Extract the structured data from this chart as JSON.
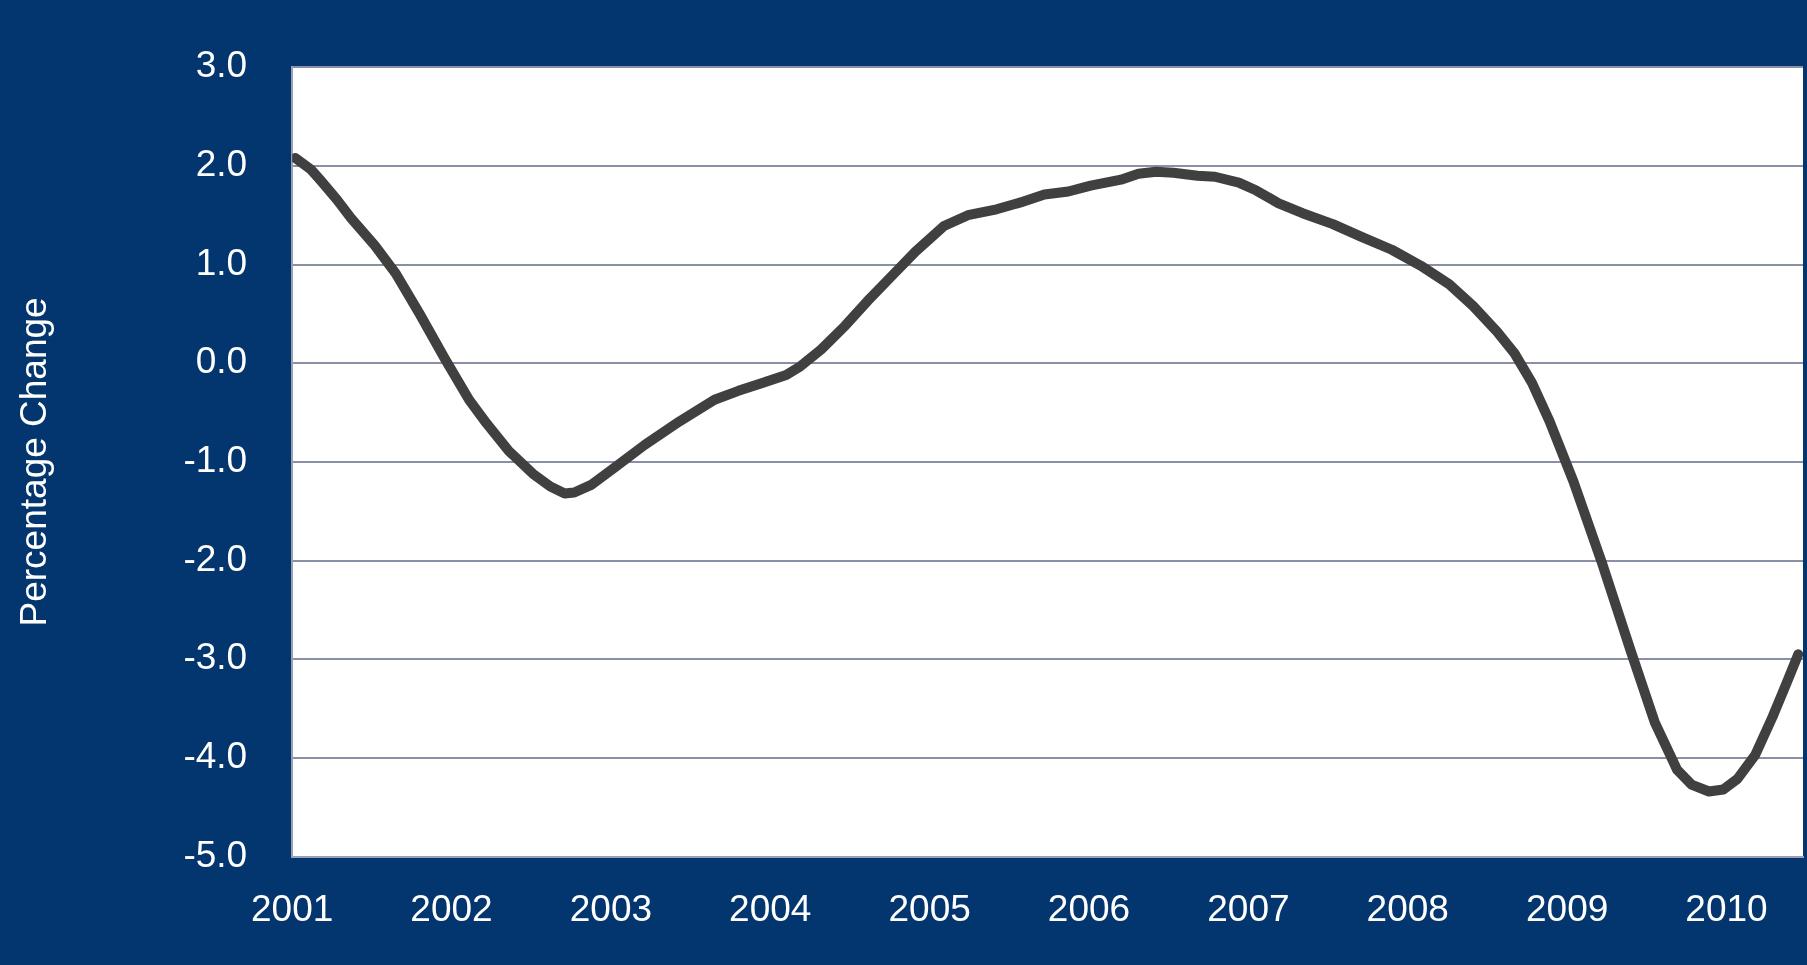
{
  "chart_data": {
    "type": "line",
    "ylabel": "Percentage Change",
    "x": [
      2001.02,
      2001.12,
      2001.18,
      2001.28,
      2001.37,
      2001.52,
      2001.65,
      2001.8,
      2001.96,
      2002.11,
      2002.22,
      2002.36,
      2002.51,
      2002.62,
      2002.71,
      2002.77,
      2002.88,
      2003.03,
      2003.21,
      2003.43,
      2003.65,
      2003.8,
      2003.95,
      2004.1,
      2004.19,
      2004.32,
      2004.47,
      2004.61,
      2004.76,
      2004.91,
      2005.09,
      2005.24,
      2005.42,
      2005.57,
      2005.72,
      2005.87,
      2006.01,
      2006.2,
      2006.31,
      2006.42,
      2006.53,
      2006.68,
      2006.79,
      2006.94,
      2007.05,
      2007.19,
      2007.34,
      2007.53,
      2007.71,
      2007.9,
      2008.08,
      2008.26,
      2008.41,
      2008.56,
      2008.67,
      2008.78,
      2008.89,
      2009.04,
      2009.22,
      2009.4,
      2009.55,
      2009.69,
      2009.78,
      2009.89,
      2009.98,
      2010.07,
      2010.18,
      2010.29,
      2010.38,
      2010.45
    ],
    "series": [
      {
        "color": "#404040",
        "values": [
          2.08,
          1.96,
          1.85,
          1.66,
          1.47,
          1.19,
          0.91,
          0.5,
          0.04,
          -0.37,
          -0.61,
          -0.89,
          -1.12,
          -1.25,
          -1.32,
          -1.31,
          -1.23,
          -1.05,
          -0.83,
          -0.59,
          -0.37,
          -0.28,
          -0.2,
          -0.12,
          -0.03,
          0.14,
          0.38,
          0.63,
          0.88,
          1.13,
          1.39,
          1.5,
          1.56,
          1.63,
          1.71,
          1.74,
          1.8,
          1.86,
          1.92,
          1.94,
          1.93,
          1.9,
          1.89,
          1.83,
          1.75,
          1.62,
          1.52,
          1.41,
          1.28,
          1.15,
          0.99,
          0.8,
          0.58,
          0.32,
          0.1,
          -0.2,
          -0.59,
          -1.2,
          -2.03,
          -2.92,
          -3.64,
          -4.12,
          -4.27,
          -4.34,
          -4.32,
          -4.21,
          -3.97,
          -3.58,
          -3.23,
          -2.95
        ]
      }
    ],
    "xlim": [
      2001,
      2010.48
    ],
    "xticks": [
      2001,
      2002,
      2003,
      2004,
      2005,
      2006,
      2007,
      2008,
      2009,
      2010
    ],
    "ylim": [
      -5,
      3
    ],
    "yticks": [
      {
        "value": -5,
        "label": "-5.0"
      },
      {
        "value": -4,
        "label": "-4.0"
      },
      {
        "value": -3,
        "label": "-3.0"
      },
      {
        "value": -2,
        "label": "-2.0"
      },
      {
        "value": -1,
        "label": "-1.0"
      },
      {
        "value": 0,
        "label": "0.0"
      },
      {
        "value": 1,
        "label": "1.0"
      },
      {
        "value": 2,
        "label": "2.0"
      },
      {
        "value": 3,
        "label": "3.0"
      }
    ],
    "grid": "y",
    "legend": false,
    "marker": "none",
    "line_style": "solid"
  }
}
